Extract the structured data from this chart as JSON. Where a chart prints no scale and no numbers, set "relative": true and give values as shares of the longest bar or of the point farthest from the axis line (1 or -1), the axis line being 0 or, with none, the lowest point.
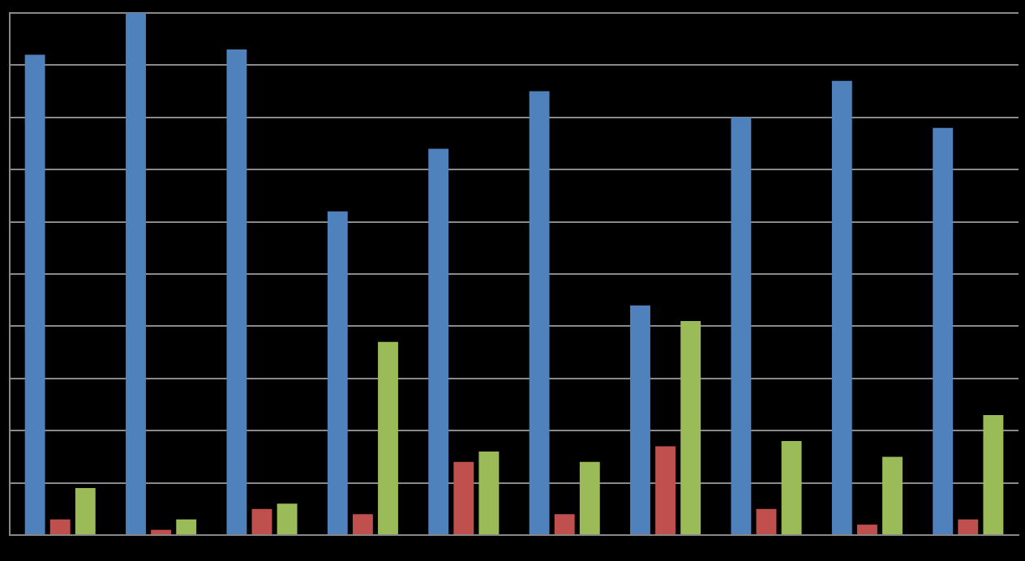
{
  "chart_data": {
    "type": "bar",
    "relative": true,
    "grid": true,
    "legend": false,
    "categories": [
      null,
      null,
      null,
      null,
      null,
      null,
      null,
      null,
      null,
      null
    ],
    "series": [
      {
        "color": "#4f81bd",
        "values": [
          0.92,
          1,
          0.93,
          0.62,
          0.74,
          0.85,
          0.44,
          0.8,
          0.87,
          0.78
        ]
      },
      {
        "color": "#c0504d",
        "values": [
          0.03,
          0.01,
          0.05,
          0.04,
          0.14,
          0.04,
          0.17,
          0.05,
          0.02,
          0.03
        ]
      },
      {
        "color": "#9bbb59",
        "values": [
          0.09,
          0.03,
          0.06,
          0.37,
          0.16,
          0.14,
          0.41,
          0.18,
          0.15,
          0.23
        ]
      }
    ]
  }
}
